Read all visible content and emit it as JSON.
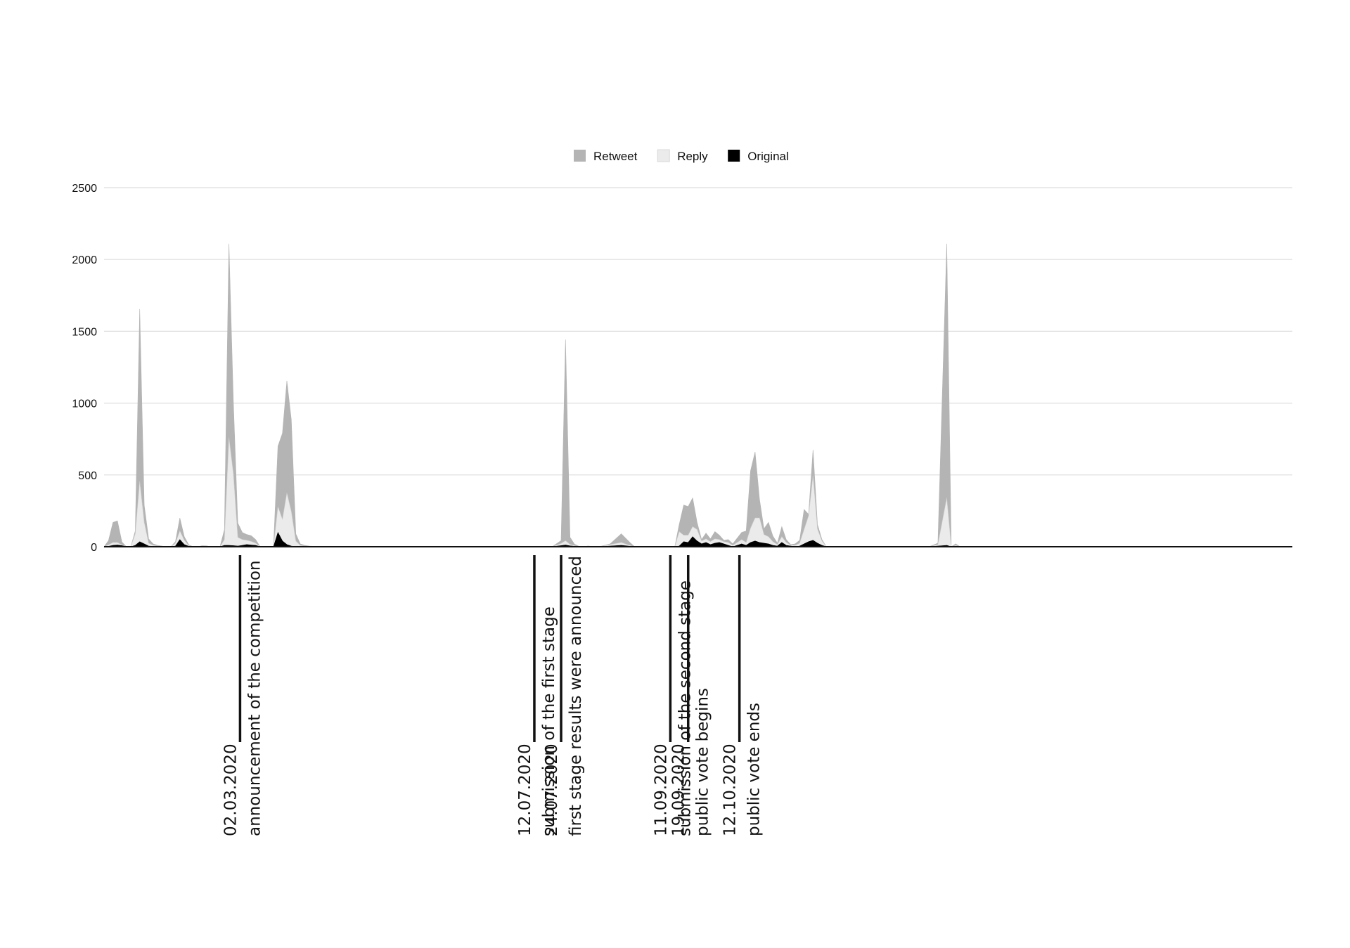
{
  "chart_data": {
    "type": "area",
    "stacked": true,
    "title": "",
    "xlabel": "",
    "ylabel": "",
    "ylim": [
      0,
      2500
    ],
    "yticks": [
      "0",
      "500",
      "1000",
      "1500",
      "2000",
      "2500"
    ],
    "grid": true,
    "legend_position": "top",
    "x_start": "2020-01-01",
    "x": [
      "2020-01-01",
      "2020-01-03",
      "2020-01-05",
      "2020-01-07",
      "2020-01-09",
      "2020-01-11",
      "2020-01-13",
      "2020-01-15",
      "2020-01-17",
      "2020-01-19",
      "2020-01-21",
      "2020-01-23",
      "2020-01-25",
      "2020-01-27",
      "2020-01-29",
      "2020-01-31",
      "2020-02-02",
      "2020-02-04",
      "2020-02-06",
      "2020-02-08",
      "2020-02-10",
      "2020-02-12",
      "2020-02-14",
      "2020-02-16",
      "2020-02-18",
      "2020-02-20",
      "2020-02-22",
      "2020-02-24",
      "2020-02-26",
      "2020-02-28",
      "2020-03-01",
      "2020-03-03",
      "2020-03-05",
      "2020-03-07",
      "2020-03-09",
      "2020-03-11",
      "2020-03-13",
      "2020-03-15",
      "2020-03-17",
      "2020-03-19",
      "2020-03-21",
      "2020-03-23",
      "2020-03-25",
      "2020-03-27",
      "2020-03-29",
      "2020-03-31",
      "2020-04-02",
      "2020-04-04",
      "2020-04-06",
      "2020-04-08",
      "2020-04-10",
      "2020-04-15",
      "2020-04-25",
      "2020-05-05",
      "2020-05-15",
      "2020-05-25",
      "2020-06-04",
      "2020-06-14",
      "2020-06-24",
      "2020-07-04",
      "2020-07-12",
      "2020-07-20",
      "2020-07-24",
      "2020-07-26",
      "2020-07-28",
      "2020-07-30",
      "2020-08-01",
      "2020-08-03",
      "2020-08-05",
      "2020-08-10",
      "2020-08-15",
      "2020-08-20",
      "2020-08-24",
      "2020-08-26",
      "2020-08-28",
      "2020-09-01",
      "2020-09-05",
      "2020-09-09",
      "2020-09-11",
      "2020-09-13",
      "2020-09-15",
      "2020-09-17",
      "2020-09-19",
      "2020-09-21",
      "2020-09-23",
      "2020-09-25",
      "2020-09-27",
      "2020-09-29",
      "2020-10-01",
      "2020-10-03",
      "2020-10-05",
      "2020-10-07",
      "2020-10-09",
      "2020-10-11",
      "2020-10-13",
      "2020-10-15",
      "2020-10-17",
      "2020-10-19",
      "2020-10-21",
      "2020-10-23",
      "2020-10-25",
      "2020-10-27",
      "2020-10-29",
      "2020-10-31",
      "2020-11-02",
      "2020-11-04",
      "2020-11-06",
      "2020-11-08",
      "2020-11-10",
      "2020-11-12",
      "2020-11-14",
      "2020-11-16",
      "2020-11-18",
      "2020-11-20",
      "2020-11-22",
      "2020-11-24",
      "2020-11-26",
      "2020-11-28",
      "2020-11-30",
      "2020-12-02",
      "2020-12-04",
      "2020-12-06",
      "2020-12-08",
      "2020-12-10",
      "2020-12-14",
      "2020-12-20",
      "2020-12-26",
      "2021-01-01",
      "2021-01-05",
      "2021-01-09",
      "2021-01-13",
      "2021-01-15",
      "2021-01-17",
      "2021-01-19",
      "2021-01-21",
      "2021-01-27",
      "2021-02-02",
      "2021-02-08",
      "2021-02-14",
      "2021-02-20",
      "2021-02-26",
      "2021-03-04",
      "2021-03-07",
      "2021-03-09",
      "2021-03-11",
      "2021-03-13",
      "2021-03-17",
      "2021-03-23",
      "2021-03-29",
      "2021-04-04",
      "2021-04-10",
      "2021-04-16",
      "2021-04-22",
      "2021-04-28",
      "2021-05-06",
      "2021-05-12",
      "2021-05-18",
      "2021-05-24",
      "2021-05-30",
      "2021-06-05",
      "2021-06-11",
      "2021-06-17"
    ],
    "series": [
      {
        "name": "Original",
        "color": "#000000",
        "values": [
          0,
          3,
          10,
          12,
          8,
          0,
          0,
          10,
          35,
          20,
          5,
          2,
          0,
          0,
          0,
          0,
          5,
          50,
          15,
          3,
          0,
          0,
          0,
          0,
          0,
          0,
          0,
          10,
          10,
          8,
          5,
          10,
          15,
          12,
          10,
          0,
          0,
          0,
          0,
          100,
          40,
          15,
          5,
          0,
          0,
          0,
          0,
          0,
          0,
          0,
          0,
          0,
          0,
          0,
          0,
          0,
          0,
          0,
          0,
          0,
          0,
          0,
          8,
          12,
          6,
          3,
          0,
          0,
          0,
          0,
          5,
          10,
          3,
          0,
          0,
          0,
          0,
          0,
          0,
          0,
          5,
          35,
          30,
          70,
          40,
          20,
          30,
          15,
          25,
          30,
          20,
          10,
          0,
          10,
          20,
          10,
          30,
          40,
          30,
          25,
          20,
          10,
          5,
          30,
          10,
          5,
          0,
          5,
          20,
          35,
          45,
          25,
          10,
          0,
          0,
          0,
          0,
          0,
          0,
          0,
          0,
          0,
          0,
          0,
          0,
          0,
          0,
          0,
          0,
          5,
          10,
          0,
          0,
          0,
          0,
          0,
          0,
          0,
          0,
          0,
          0,
          0,
          0,
          0,
          0,
          0,
          0,
          0,
          0,
          0,
          0,
          0,
          0,
          0,
          0,
          0,
          0,
          0,
          0,
          0,
          0,
          0
        ]
      },
      {
        "name": "Reply",
        "color": "#ebebeb",
        "values": [
          0,
          10,
          20,
          18,
          5,
          0,
          0,
          80,
          420,
          150,
          20,
          8,
          5,
          2,
          0,
          0,
          20,
          60,
          30,
          5,
          0,
          0,
          2,
          3,
          0,
          0,
          0,
          40,
          750,
          500,
          60,
          40,
          30,
          25,
          15,
          0,
          0,
          0,
          0,
          180,
          150,
          360,
          240,
          40,
          10,
          5,
          2,
          1,
          1,
          0,
          0,
          0,
          0,
          0,
          0,
          0,
          0,
          0,
          0,
          0,
          0,
          0,
          15,
          30,
          10,
          5,
          0,
          0,
          5,
          0,
          10,
          20,
          5,
          0,
          0,
          0,
          0,
          0,
          0,
          0,
          100,
          45,
          50,
          70,
          80,
          20,
          25,
          20,
          30,
          20,
          15,
          20,
          10,
          20,
          30,
          20,
          100,
          160,
          170,
          60,
          50,
          25,
          10,
          40,
          20,
          5,
          10,
          20,
          100,
          180,
          450,
          100,
          30,
          0,
          0,
          0,
          0,
          0,
          0,
          0,
          0,
          0,
          0,
          0,
          0,
          0,
          0,
          0,
          0,
          10,
          330,
          0,
          10,
          0,
          0,
          0,
          0,
          0,
          0,
          0,
          0,
          0,
          0,
          0,
          0,
          0,
          0,
          0,
          0,
          0,
          0,
          0,
          0,
          0,
          0,
          0,
          0,
          0,
          0,
          0,
          0,
          0
        ]
      },
      {
        "name": "Retweet",
        "color": "#b4b4b4",
        "values": [
          0,
          30,
          140,
          150,
          20,
          0,
          0,
          20,
          1200,
          120,
          30,
          10,
          5,
          3,
          0,
          0,
          10,
          90,
          25,
          5,
          0,
          0,
          5,
          3,
          0,
          0,
          0,
          70,
          1350,
          500,
          100,
          50,
          40,
          40,
          25,
          0,
          0,
          0,
          0,
          420,
          600,
          780,
          640,
          50,
          10,
          5,
          3,
          2,
          2,
          0,
          0,
          0,
          0,
          0,
          0,
          0,
          0,
          0,
          0,
          0,
          0,
          0,
          20,
          1400,
          50,
          10,
          3,
          0,
          0,
          0,
          5,
          60,
          20,
          0,
          0,
          0,
          0,
          0,
          0,
          0,
          50,
          210,
          200,
          200,
          50,
          10,
          40,
          20,
          50,
          30,
          10,
          20,
          10,
          30,
          50,
          80,
          400,
          460,
          130,
          40,
          100,
          40,
          10,
          70,
          20,
          5,
          10,
          20,
          140,
          10,
          180,
          30,
          10,
          0,
          0,
          0,
          0,
          0,
          0,
          0,
          0,
          0,
          0,
          0,
          0,
          0,
          0,
          0,
          0,
          10,
          1770,
          0,
          10,
          0,
          0,
          0,
          0,
          0,
          0,
          0,
          0,
          0,
          0,
          0,
          0,
          0,
          0,
          0,
          0,
          0,
          0,
          0,
          0,
          0,
          0,
          0,
          0,
          0,
          0,
          0,
          0,
          0
        ]
      }
    ],
    "legend": [
      {
        "name": "Retweet",
        "color": "#b4b4b4"
      },
      {
        "name": "Reply",
        "color": "#ebebeb"
      },
      {
        "name": "Original",
        "color": "#000000"
      }
    ],
    "annotations": [
      {
        "date_label": "02.03.2020",
        "text": "announcement of the competition",
        "date": "2020-03-02"
      },
      {
        "date_label": "12.07.2020",
        "text": "submission of the first stage",
        "date": "2020-07-12"
      },
      {
        "date_label": "24.07.2020",
        "text": "first stage results were announced",
        "date": "2020-07-24"
      },
      {
        "date_label": "11.09.2020",
        "text": "submission of the second stage",
        "date": "2020-09-11"
      },
      {
        "date_label": "19.09.2020",
        "text": "public vote begins",
        "date": "2020-09-19"
      },
      {
        "date_label": "12.10.2020",
        "text": "public vote ends",
        "date": "2020-10-12"
      }
    ]
  }
}
